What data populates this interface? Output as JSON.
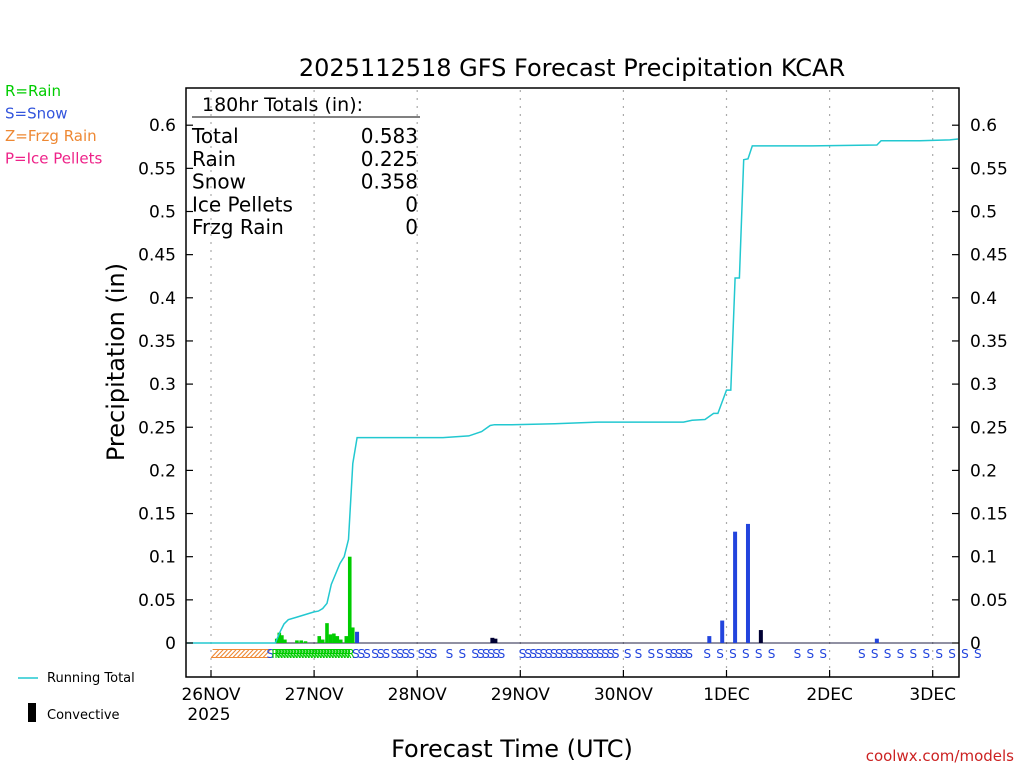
{
  "legend_types": [
    {
      "label": "R=Rain",
      "color": "#00cc00"
    },
    {
      "label": "S=Snow",
      "color": "#3355dd"
    },
    {
      "label": "Z=Frzg Rain",
      "color": "#ee8833"
    },
    {
      "label": "P=Ice Pellets",
      "color": "#ee2288"
    }
  ],
  "totals_box": {
    "header": "180hr Totals (in):",
    "rows": [
      {
        "label": "Total",
        "value": "0.583"
      },
      {
        "label": "Rain",
        "value": "0.225"
      },
      {
        "label": "Snow",
        "value": "0.358"
      },
      {
        "label": "Ice Pellets",
        "value": "0"
      },
      {
        "label": "Frzg Rain",
        "value": "0"
      }
    ]
  },
  "bottom_legend": {
    "running_total": "Running Total",
    "convective": "Convective"
  },
  "credit": "coolwx.com/models",
  "colors": {
    "running_total": "#22c8d0",
    "rain": "#00cc00",
    "snow": "#2244dd",
    "frzg": "#ee8833",
    "convective": "#000033",
    "grid": "#aaaaaa"
  },
  "chart_data": {
    "type": "bar",
    "title": "2025112518 GFS Forecast Precipitation KCAR",
    "xlabel": "Forecast Time (UTC)",
    "ylabel": "Precipitation (in)",
    "ylim": [
      -0.03,
      0.64
    ],
    "xlim_hours": [
      -6,
      180
    ],
    "grid": "dotted vertical lines at each day",
    "y_ticks": [
      "0",
      "0.05",
      "0.1",
      "0.15",
      "0.2",
      "0.25",
      "0.3",
      "0.35",
      "0.4",
      "0.45",
      "0.5",
      "0.55",
      "0.6"
    ],
    "x_ticks": [
      {
        "hour": 0,
        "label": "26NOV",
        "sub": "2025"
      },
      {
        "hour": 24,
        "label": "27NOV",
        "sub": ""
      },
      {
        "hour": 48,
        "label": "28NOV",
        "sub": ""
      },
      {
        "hour": 72,
        "label": "29NOV",
        "sub": ""
      },
      {
        "hour": 96,
        "label": "30NOV",
        "sub": ""
      },
      {
        "hour": 120,
        "label": "1DEC",
        "sub": ""
      },
      {
        "hour": 144,
        "label": "2DEC",
        "sub": ""
      },
      {
        "hour": 168,
        "label": "3DEC",
        "sub": ""
      }
    ],
    "running_total": {
      "name": "Running Total",
      "hours": [
        -6,
        15,
        16,
        17,
        18,
        20,
        22,
        24,
        25,
        26,
        27,
        28,
        29,
        30,
        31,
        32,
        33,
        34,
        35,
        36,
        38,
        40,
        44,
        48,
        54,
        60,
        63,
        65,
        66,
        70,
        80,
        90,
        100,
        110,
        112,
        115,
        117,
        118,
        120,
        121,
        122,
        123,
        124,
        125,
        126,
        128,
        140,
        155,
        156,
        165,
        172,
        180
      ],
      "values": [
        0,
        0,
        0.012,
        0.022,
        0.027,
        0.03,
        0.033,
        0.036,
        0.037,
        0.04,
        0.046,
        0.068,
        0.08,
        0.092,
        0.1,
        0.12,
        0.208,
        0.238,
        0.238,
        0.238,
        0.238,
        0.238,
        0.238,
        0.238,
        0.238,
        0.24,
        0.245,
        0.252,
        0.253,
        0.253,
        0.254,
        0.256,
        0.256,
        0.256,
        0.258,
        0.259,
        0.266,
        0.266,
        0.293,
        0.293,
        0.423,
        0.423,
        0.56,
        0.561,
        0.576,
        0.576,
        0.576,
        0.577,
        0.582,
        0.582,
        0.583,
        0.584
      ]
    },
    "bars": [
      {
        "hour": 15.3,
        "value": 0.005,
        "type": "rain"
      },
      {
        "hour": 15.9,
        "value": 0.012,
        "type": "rain"
      },
      {
        "hour": 16.5,
        "value": 0.009,
        "type": "rain"
      },
      {
        "hour": 17.2,
        "value": 0.004,
        "type": "rain"
      },
      {
        "hour": 20.0,
        "value": 0.003,
        "type": "rain"
      },
      {
        "hour": 21.0,
        "value": 0.003,
        "type": "rain"
      },
      {
        "hour": 22.0,
        "value": 0.002,
        "type": "rain"
      },
      {
        "hour": 25.2,
        "value": 0.008,
        "type": "rain"
      },
      {
        "hour": 26.0,
        "value": 0.004,
        "type": "rain"
      },
      {
        "hour": 27.0,
        "value": 0.023,
        "type": "rain"
      },
      {
        "hour": 27.8,
        "value": 0.01,
        "type": "rain"
      },
      {
        "hour": 28.6,
        "value": 0.011,
        "type": "rain"
      },
      {
        "hour": 29.4,
        "value": 0.008,
        "type": "rain"
      },
      {
        "hour": 30.2,
        "value": 0.004,
        "type": "rain"
      },
      {
        "hour": 31.5,
        "value": 0.008,
        "type": "rain"
      },
      {
        "hour": 32.3,
        "value": 0.1,
        "type": "rain"
      },
      {
        "hour": 33.0,
        "value": 0.018,
        "type": "rain"
      },
      {
        "hour": 34.0,
        "value": 0.013,
        "type": "snow"
      },
      {
        "hour": 65.5,
        "value": 0.006,
        "type": "convective"
      },
      {
        "hour": 66.2,
        "value": 0.005,
        "type": "convective"
      },
      {
        "hour": 116.0,
        "value": 0.008,
        "type": "snow"
      },
      {
        "hour": 119.0,
        "value": 0.026,
        "type": "snow"
      },
      {
        "hour": 122.0,
        "value": 0.129,
        "type": "snow"
      },
      {
        "hour": 125.0,
        "value": 0.138,
        "type": "snow"
      },
      {
        "hour": 128.0,
        "value": 0.015,
        "type": "convective"
      },
      {
        "hour": 155.0,
        "value": 0.005,
        "type": "snow"
      }
    ],
    "ptype_markers": [
      {
        "symbol": "Z",
        "hours": [
          1,
          2,
          3,
          4,
          5,
          6,
          7,
          8,
          9,
          10,
          11,
          12,
          13
        ]
      },
      {
        "symbol": "S",
        "hours": [
          13.8
        ]
      },
      {
        "symbol": "R",
        "hours": [
          15,
          15.7,
          16.4,
          17.1,
          17.8,
          18.5,
          19.2,
          19.9,
          20.6,
          21.3,
          22,
          22.7,
          23.4,
          24.1,
          24.8,
          25.5,
          26.2,
          26.9,
          27.6,
          28.3,
          29,
          29.7,
          30.4,
          31.1,
          31.8,
          32.5
        ]
      },
      {
        "symbol": "S",
        "hours": [
          33.7,
          35.0,
          36.3,
          38.2,
          39.5,
          40.8,
          42.7,
          44.0,
          45.3,
          46.6,
          49.0,
          50.5,
          51.8,
          55.5,
          58.5,
          61.5,
          62.8,
          64.0,
          65.2,
          66.4,
          67.6,
          72.5,
          73.8,
          75.0,
          76.2,
          77.4,
          78.6,
          79.8,
          81.0,
          82.2,
          83.4,
          84.6,
          85.8,
          87.0,
          88.2,
          89.4,
          90.6,
          91.8,
          93.0,
          94.2,
          97.0,
          99.5,
          102.5,
          104.5,
          106.5,
          107.7,
          108.9,
          110.1,
          111.3,
          115.5,
          118.5,
          121.5,
          124.5,
          127.5,
          130.5,
          136.5,
          139.5,
          142.5,
          151.5,
          154.5,
          157.5,
          160.5,
          163.5,
          166.5,
          169.5,
          172.5,
          175.5,
          178.5
        ]
      }
    ]
  }
}
